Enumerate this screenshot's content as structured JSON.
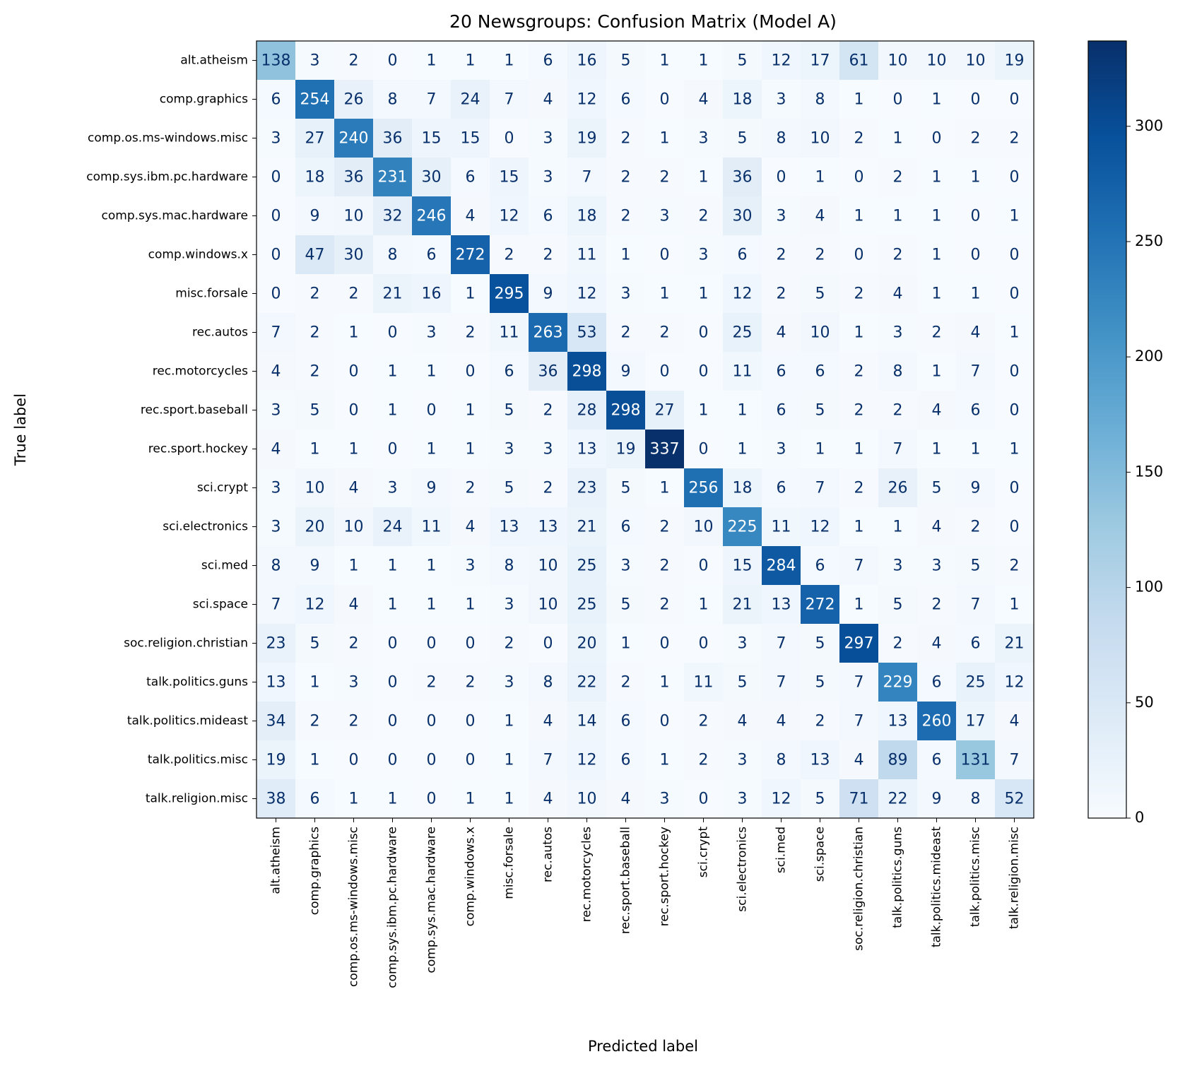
{
  "chart_data": {
    "type": "heatmap",
    "title": "20 Newsgroups: Confusion Matrix (Model A)",
    "x_label": "Predicted label",
    "y_label": "True label",
    "x_categories": [
      "alt.atheism",
      "comp.graphics",
      "comp.os.ms-windows.misc",
      "comp.sys.ibm.pc.hardware",
      "comp.sys.mac.hardware",
      "comp.windows.x",
      "misc.forsale",
      "rec.autos",
      "rec.motorcycles",
      "rec.sport.baseball",
      "rec.sport.hockey",
      "sci.crypt",
      "sci.electronics",
      "sci.med",
      "sci.space",
      "soc.religion.christian",
      "talk.politics.guns",
      "talk.politics.mideast",
      "talk.politics.misc",
      "talk.religion.misc"
    ],
    "y_categories": [
      "alt.atheism",
      "comp.graphics",
      "comp.os.ms-windows.misc",
      "comp.sys.ibm.pc.hardware",
      "comp.sys.mac.hardware",
      "comp.windows.x",
      "misc.forsale",
      "rec.autos",
      "rec.motorcycles",
      "rec.sport.baseball",
      "rec.sport.hockey",
      "sci.crypt",
      "sci.electronics",
      "sci.med",
      "sci.space",
      "soc.religion.christian",
      "talk.politics.guns",
      "talk.politics.mideast",
      "talk.politics.misc",
      "talk.religion.misc"
    ],
    "values": [
      [
        138,
        3,
        2,
        0,
        1,
        1,
        1,
        6,
        16,
        5,
        1,
        1,
        5,
        12,
        17,
        61,
        10,
        10,
        10,
        19
      ],
      [
        6,
        254,
        26,
        8,
        7,
        24,
        7,
        4,
        12,
        6,
        0,
        4,
        18,
        3,
        8,
        1,
        0,
        1,
        0,
        0
      ],
      [
        3,
        27,
        240,
        36,
        15,
        15,
        0,
        3,
        19,
        2,
        1,
        3,
        5,
        8,
        10,
        2,
        1,
        0,
        2,
        2
      ],
      [
        0,
        18,
        36,
        231,
        30,
        6,
        15,
        3,
        7,
        2,
        2,
        1,
        36,
        0,
        1,
        0,
        2,
        1,
        1,
        0
      ],
      [
        0,
        9,
        10,
        32,
        246,
        4,
        12,
        6,
        18,
        2,
        3,
        2,
        30,
        3,
        4,
        1,
        1,
        1,
        0,
        1
      ],
      [
        0,
        47,
        30,
        8,
        6,
        272,
        2,
        2,
        11,
        1,
        0,
        3,
        6,
        2,
        2,
        0,
        2,
        1,
        0,
        0
      ],
      [
        0,
        2,
        2,
        21,
        16,
        1,
        295,
        9,
        12,
        3,
        1,
        1,
        12,
        2,
        5,
        2,
        4,
        1,
        1,
        0
      ],
      [
        7,
        2,
        1,
        0,
        3,
        2,
        11,
        263,
        53,
        2,
        2,
        0,
        25,
        4,
        10,
        1,
        3,
        2,
        4,
        1
      ],
      [
        4,
        2,
        0,
        1,
        1,
        0,
        6,
        36,
        298,
        9,
        0,
        0,
        11,
        6,
        6,
        2,
        8,
        1,
        7,
        0
      ],
      [
        3,
        5,
        0,
        1,
        0,
        1,
        5,
        2,
        28,
        298,
        27,
        1,
        1,
        6,
        5,
        2,
        2,
        4,
        6,
        0
      ],
      [
        4,
        1,
        1,
        0,
        1,
        1,
        3,
        3,
        13,
        19,
        337,
        0,
        1,
        3,
        1,
        1,
        7,
        1,
        1,
        1
      ],
      [
        3,
        10,
        4,
        3,
        9,
        2,
        5,
        2,
        23,
        5,
        1,
        256,
        18,
        6,
        7,
        2,
        26,
        5,
        9,
        0
      ],
      [
        3,
        20,
        10,
        24,
        11,
        4,
        13,
        13,
        21,
        6,
        2,
        10,
        225,
        11,
        12,
        1,
        1,
        4,
        2,
        0
      ],
      [
        8,
        9,
        1,
        1,
        1,
        3,
        8,
        10,
        25,
        3,
        2,
        0,
        15,
        284,
        6,
        7,
        3,
        3,
        5,
        2
      ],
      [
        7,
        12,
        4,
        1,
        1,
        1,
        3,
        10,
        25,
        5,
        2,
        1,
        21,
        13,
        272,
        1,
        5,
        2,
        7,
        1
      ],
      [
        23,
        5,
        2,
        0,
        0,
        0,
        2,
        0,
        20,
        1,
        0,
        0,
        3,
        7,
        5,
        297,
        2,
        4,
        6,
        21
      ],
      [
        13,
        1,
        3,
        0,
        2,
        2,
        3,
        8,
        22,
        2,
        1,
        11,
        5,
        7,
        5,
        7,
        229,
        6,
        25,
        12
      ],
      [
        34,
        2,
        2,
        0,
        0,
        0,
        1,
        4,
        14,
        6,
        0,
        2,
        4,
        4,
        2,
        7,
        13,
        260,
        17,
        4
      ],
      [
        19,
        1,
        0,
        0,
        0,
        0,
        1,
        7,
        12,
        6,
        1,
        2,
        3,
        8,
        13,
        4,
        89,
        6,
        131,
        7
      ],
      [
        38,
        6,
        1,
        1,
        0,
        1,
        1,
        4,
        10,
        4,
        3,
        0,
        3,
        12,
        5,
        71,
        22,
        9,
        8,
        52
      ]
    ],
    "colormap": "Blues",
    "clim": [
      0,
      337
    ],
    "cticks": [
      0,
      50,
      100,
      150,
      200,
      250,
      300
    ]
  }
}
